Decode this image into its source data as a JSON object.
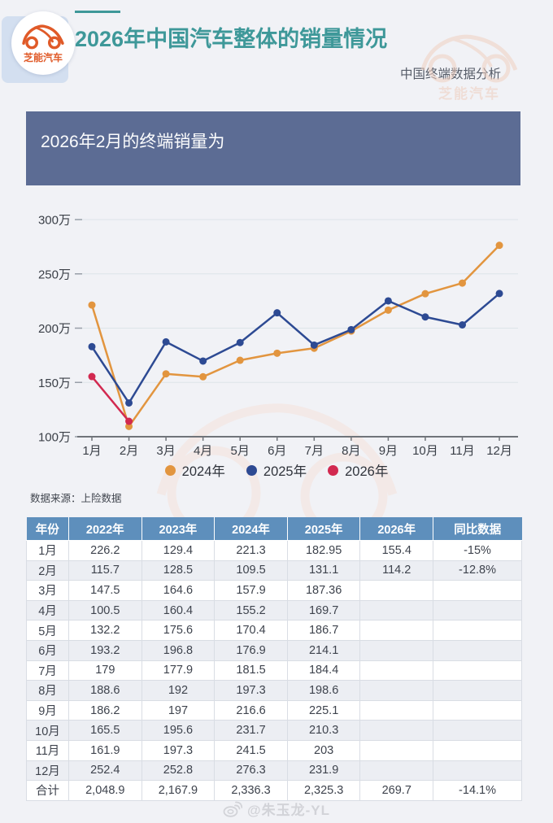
{
  "colors": {
    "accent_teal": "#3e9899",
    "banner_bg": "#5c6c94",
    "table_header_bg": "#5e8fbc",
    "page_bg": "#f1f2f6",
    "series_2024": "#e2953f",
    "series_2025": "#2d4a93",
    "series_2026": "#d22950",
    "logo_orange": "#e05a28",
    "watermark_salmon": "#efcdbd"
  },
  "icons": {
    "logo": "car-icon",
    "footer": "weibo-icon"
  },
  "header": {
    "logo_text": "芝能汽车",
    "title": "2026年中国汽车整体的销量情况",
    "subtitle": "中国终端数据分析"
  },
  "banner": {
    "text": "2026年2月的终端销量为"
  },
  "chart_data": {
    "type": "line",
    "title": "",
    "xlabel": "",
    "ylabel": "",
    "unit": "万",
    "ylim": [
      100,
      300
    ],
    "grid": true,
    "legend_position": "bottom",
    "categories": [
      "1月",
      "2月",
      "3月",
      "4月",
      "5月",
      "6月",
      "7月",
      "8月",
      "9月",
      "10月",
      "11月",
      "12月"
    ],
    "y_ticks": [
      {
        "value": 100,
        "label": "100万"
      },
      {
        "value": 150,
        "label": "150万"
      },
      {
        "value": 200,
        "label": "200万"
      },
      {
        "value": 250,
        "label": "250万"
      },
      {
        "value": 300,
        "label": "300万"
      }
    ],
    "series": [
      {
        "name": "2024年",
        "color": "#e2953f",
        "values": [
          221.3,
          109.5,
          157.9,
          155.2,
          170.4,
          176.9,
          181.5,
          197.3,
          216.6,
          231.7,
          241.5,
          276.3
        ]
      },
      {
        "name": "2025年",
        "color": "#2d4a93",
        "values": [
          182.95,
          131.1,
          187.36,
          169.7,
          186.7,
          214.1,
          184.4,
          198.6,
          225.1,
          210.3,
          203,
          231.9
        ]
      },
      {
        "name": "2026年",
        "color": "#d22950",
        "values": [
          155.4,
          114.2
        ]
      }
    ]
  },
  "source_note": "数据来源：上险数据",
  "table": {
    "headers": [
      "年份",
      "2022年",
      "2023年",
      "2024年",
      "2025年",
      "2026年",
      "同比数据"
    ],
    "rows": [
      [
        "1月",
        "226.2",
        "129.4",
        "221.3",
        "182.95",
        "155.4",
        "-15%"
      ],
      [
        "2月",
        "115.7",
        "128.5",
        "109.5",
        "131.1",
        "114.2",
        "-12.8%"
      ],
      [
        "3月",
        "147.5",
        "164.6",
        "157.9",
        "187.36",
        "",
        ""
      ],
      [
        "4月",
        "100.5",
        "160.4",
        "155.2",
        "169.7",
        "",
        ""
      ],
      [
        "5月",
        "132.2",
        "175.6",
        "170.4",
        "186.7",
        "",
        ""
      ],
      [
        "6月",
        "193.2",
        "196.8",
        "176.9",
        "214.1",
        "",
        ""
      ],
      [
        "7月",
        "179",
        "177.9",
        "181.5",
        "184.4",
        "",
        ""
      ],
      [
        "8月",
        "188.6",
        "192",
        "197.3",
        "198.6",
        "",
        ""
      ],
      [
        "9月",
        "186.2",
        "197",
        "216.6",
        "225.1",
        "",
        ""
      ],
      [
        "10月",
        "165.5",
        "195.6",
        "231.7",
        "210.3",
        "",
        ""
      ],
      [
        "11月",
        "161.9",
        "197.3",
        "241.5",
        "203",
        "",
        ""
      ],
      [
        "12月",
        "252.4",
        "252.8",
        "276.3",
        "231.9",
        "",
        ""
      ],
      [
        "合计",
        "2,048.9",
        "2,167.9",
        "2,336.3",
        "2,325.3",
        "269.7",
        "-14.1%"
      ]
    ]
  },
  "footer": {
    "handle": "@朱玉龙-YL"
  },
  "watermark": {
    "text": "芝能汽车"
  }
}
